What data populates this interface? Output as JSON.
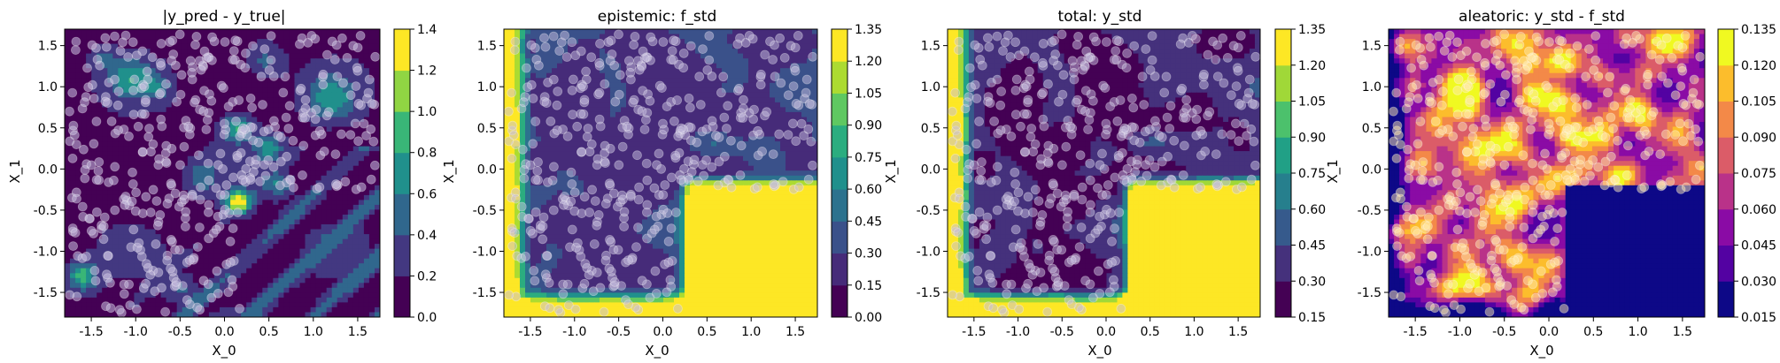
{
  "chart_data": [
    {
      "type": "heatmap",
      "title": "|y_pred - y_true|",
      "xlabel": "X_0",
      "ylabel": "X_1",
      "xlim": [
        -1.8,
        1.75
      ],
      "ylim": [
        -1.8,
        1.7
      ],
      "xticks": [
        "-1.5",
        "-1.0",
        "-0.5",
        "0.0",
        "0.5",
        "1.0",
        "1.5"
      ],
      "yticks": [
        "-1.5",
        "-1.0",
        "-0.5",
        "0.0",
        "0.5",
        "1.0",
        "1.5"
      ],
      "colormap": "viridis",
      "colorbar": {
        "levels": [
          0.0,
          0.2,
          0.4,
          0.6,
          0.8,
          1.0,
          1.2,
          1.4
        ],
        "ticks": [
          "0.0",
          "0.2",
          "0.4",
          "0.6",
          "0.8",
          "1.0",
          "1.2",
          "1.4"
        ]
      }
    },
    {
      "type": "heatmap",
      "title": "epistemic: f_std",
      "xlabel": "X_0",
      "ylabel": "X_1",
      "xlim": [
        -1.8,
        1.75
      ],
      "ylim": [
        -1.8,
        1.7
      ],
      "xticks": [
        "-1.5",
        "-1.0",
        "-0.5",
        "0.0",
        "0.5",
        "1.0",
        "1.5"
      ],
      "yticks": [
        "-1.5",
        "-1.0",
        "-0.5",
        "0.0",
        "0.5",
        "1.0",
        "1.5"
      ],
      "colormap": "viridis",
      "colorbar": {
        "levels": [
          0.0,
          0.15,
          0.3,
          0.45,
          0.6,
          0.75,
          0.9,
          1.05,
          1.2,
          1.35
        ],
        "ticks": [
          "0.00",
          "0.15",
          "0.30",
          "0.45",
          "0.60",
          "0.75",
          "0.90",
          "1.05",
          "1.20",
          "1.35"
        ]
      }
    },
    {
      "type": "heatmap",
      "title": "total: y_std",
      "xlabel": "X_0",
      "ylabel": "X_1",
      "xlim": [
        -1.8,
        1.75
      ],
      "ylim": [
        -1.8,
        1.7
      ],
      "xticks": [
        "-1.5",
        "-1.0",
        "-0.5",
        "0.0",
        "0.5",
        "1.0",
        "1.5"
      ],
      "yticks": [
        "-1.5",
        "-1.0",
        "-0.5",
        "0.0",
        "0.5",
        "1.0",
        "1.5"
      ],
      "colormap": "viridis",
      "colorbar": {
        "levels": [
          0.15,
          0.3,
          0.45,
          0.6,
          0.75,
          0.9,
          1.05,
          1.2,
          1.35
        ],
        "ticks": [
          "0.15",
          "0.30",
          "0.45",
          "0.60",
          "0.75",
          "0.90",
          "1.05",
          "1.20",
          "1.35"
        ]
      }
    },
    {
      "type": "heatmap",
      "title": "aleatoric: y_std - f_std",
      "xlabel": "X_0",
      "ylabel": "X_1",
      "xlim": [
        -1.8,
        1.75
      ],
      "ylim": [
        -1.8,
        1.7
      ],
      "xticks": [
        "-1.5",
        "-1.0",
        "-0.5",
        "0.0",
        "0.5",
        "1.0",
        "1.5"
      ],
      "yticks": [
        "-1.5",
        "-1.0",
        "-0.5",
        "0.0",
        "0.5",
        "1.0",
        "1.5"
      ],
      "colormap": "plasma",
      "colorbar": {
        "levels": [
          0.015,
          0.03,
          0.045,
          0.06,
          0.075,
          0.09,
          0.105,
          0.12,
          0.135
        ],
        "ticks": [
          "0.015",
          "0.030",
          "0.045",
          "0.060",
          "0.075",
          "0.090",
          "0.105",
          "0.120",
          "0.135"
        ]
      }
    }
  ]
}
